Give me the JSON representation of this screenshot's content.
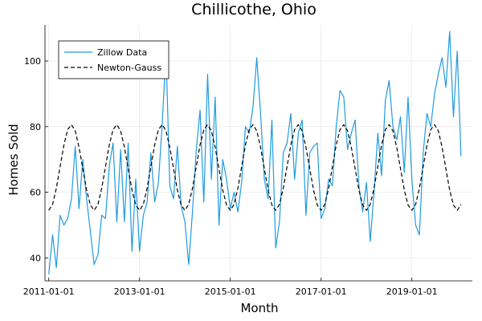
{
  "chart_data": {
    "type": "line",
    "title": "Chillicothe, Ohio",
    "xlabel": "Month",
    "ylabel": "Homes Sold",
    "x_ticks": [
      "2011-01-01",
      "2013-01-01",
      "2015-01-01",
      "2017-01-01",
      "2019-01-01"
    ],
    "y_ticks": [
      40,
      60,
      80,
      100
    ],
    "xlim": [
      "2010-12",
      "2020-05"
    ],
    "ylim": [
      33,
      111
    ],
    "grid": true,
    "legend_position": "top-left",
    "start_month": "2011-01",
    "series": [
      {
        "name": "Zillow Data",
        "color": "#1f9be0",
        "style": "solid",
        "values": [
          35,
          47,
          37,
          53,
          50,
          52,
          58,
          74,
          55,
          70,
          58,
          48,
          38,
          41,
          53,
          52,
          68,
          75,
          51,
          73,
          51,
          75,
          42,
          64,
          42,
          53,
          57,
          72,
          57,
          63,
          81,
          103,
          62,
          58,
          74,
          56,
          51,
          38,
          54,
          73,
          85,
          57,
          96,
          64,
          89,
          50,
          70,
          64,
          55,
          60,
          54,
          63,
          80,
          78,
          86,
          101,
          84,
          64,
          58,
          82,
          43,
          51,
          72,
          75,
          84,
          64,
          78,
          82,
          53,
          72,
          74,
          75,
          52,
          55,
          64,
          62,
          80,
          91,
          89,
          73,
          78,
          82,
          62,
          54,
          63,
          45,
          60,
          78,
          65,
          88,
          94,
          80,
          76,
          83,
          66,
          89,
          64,
          50,
          47,
          72,
          84,
          80,
          90,
          96,
          101,
          92,
          109,
          83,
          103,
          71
        ]
      },
      {
        "name": "Newton-Gauss",
        "color": "#000000",
        "style": "dashed",
        "amplitude_note": "seasonal fit, period 12 months",
        "values": [
          54.5,
          56.3,
          61.2,
          67.8,
          74.4,
          79.1,
          80.6,
          78.7,
          73.7,
          67.2,
          60.7,
          56.1,
          54.5,
          56.3,
          61.2,
          67.8,
          74.4,
          79.1,
          80.6,
          78.7,
          73.7,
          67.2,
          60.7,
          56.1,
          54.5,
          56.3,
          61.2,
          67.8,
          74.4,
          79.1,
          80.6,
          78.7,
          73.7,
          67.2,
          60.7,
          56.1,
          54.5,
          56.3,
          61.2,
          67.8,
          74.4,
          79.1,
          80.6,
          78.7,
          73.7,
          67.2,
          60.7,
          56.1,
          54.5,
          56.3,
          61.2,
          67.8,
          74.4,
          79.1,
          80.6,
          78.7,
          73.7,
          67.2,
          60.7,
          56.1,
          54.5,
          56.3,
          61.2,
          67.8,
          74.4,
          79.1,
          80.6,
          78.7,
          73.7,
          67.2,
          60.7,
          56.1,
          54.5,
          56.3,
          61.2,
          67.8,
          74.4,
          79.1,
          80.6,
          78.7,
          73.7,
          67.2,
          60.7,
          56.1,
          54.5,
          56.3,
          61.2,
          67.8,
          74.4,
          79.1,
          80.6,
          78.7,
          73.7,
          67.2,
          60.7,
          56.1,
          54.5,
          56.3,
          61.2,
          67.8,
          74.4,
          79.1,
          80.6,
          78.7,
          73.7,
          67.2,
          60.7,
          56.1,
          54.5,
          56.3
        ]
      }
    ]
  }
}
